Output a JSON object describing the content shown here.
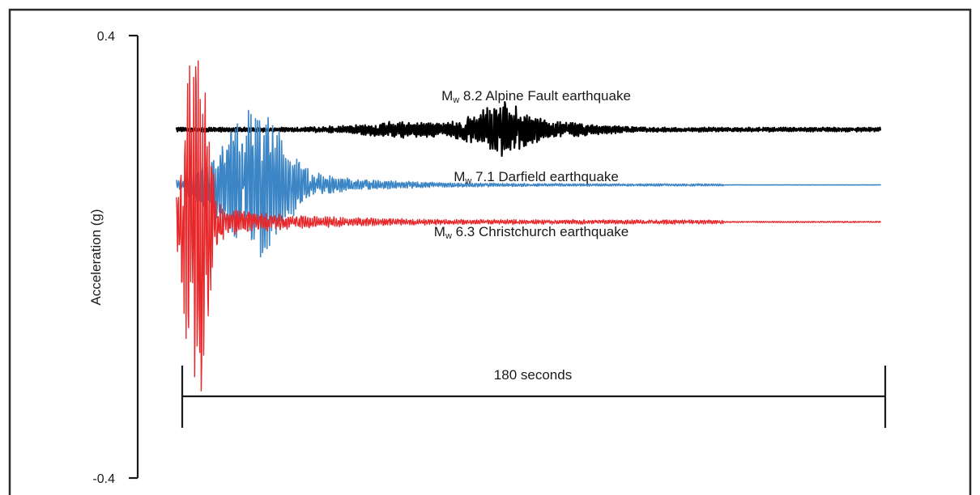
{
  "chart_data": {
    "type": "line",
    "ylabel": "Acceleration (g)",
    "ylim": [
      -0.4,
      0.4
    ],
    "y_ticks": [
      {
        "value": 0.4,
        "label": "0.4"
      },
      {
        "value": -0.4,
        "label": "-0.4"
      }
    ],
    "time_scale": {
      "label": "180 seconds",
      "duration_s": 180
    },
    "grid": false,
    "series": [
      {
        "name": {
          "prefix": "M",
          "sub": "w",
          "text": " 8.2 Alpine Fault earthquake"
        },
        "color": "#000000",
        "offset_g": 0.23,
        "peak_g": 0.05,
        "peak_time_s": 83
      },
      {
        "name": {
          "prefix": "M",
          "sub": "w",
          "text": " 7.1 Darfield earthquake"
        },
        "color": "#3d86c6",
        "offset_g": 0.13,
        "peak_g": 0.11,
        "peak_time_s": 20
      },
      {
        "name": {
          "prefix": "M",
          "sub": "w",
          "text": " 6.3 Christchurch earthquake"
        },
        "color": "#e8272a",
        "offset_g": 0.063,
        "peak_g": 0.35,
        "peak_time_s": 5
      }
    ]
  }
}
